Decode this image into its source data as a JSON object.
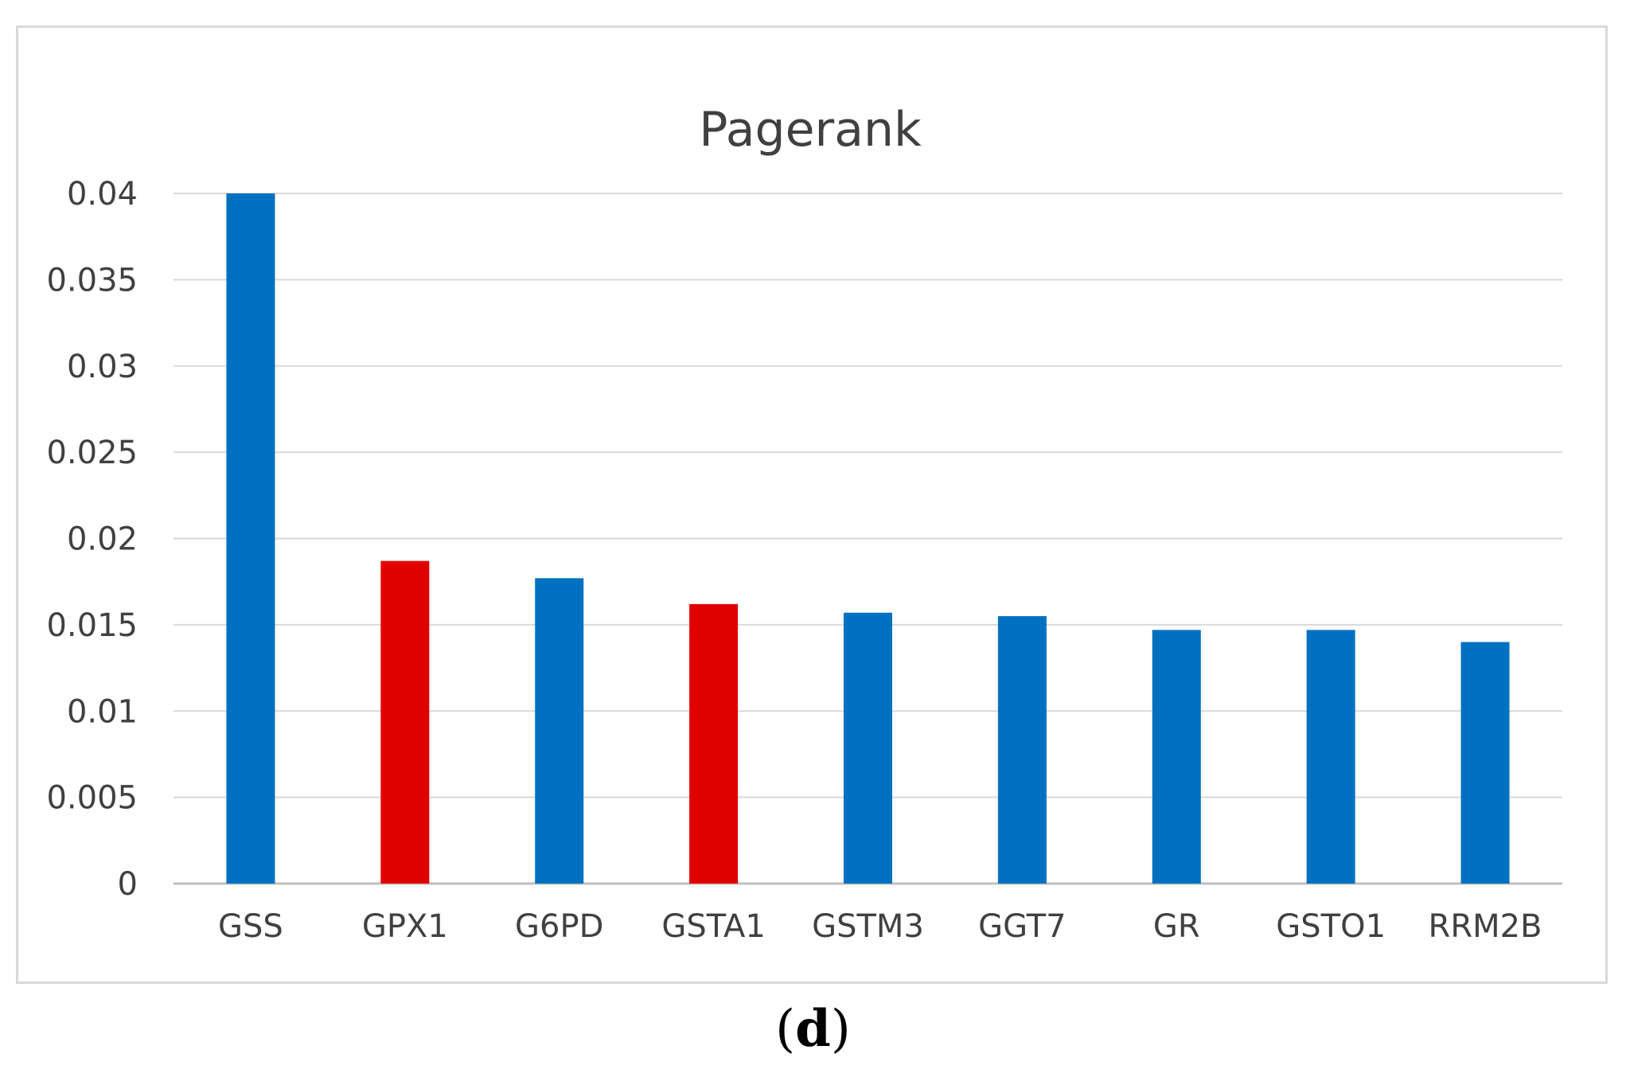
{
  "chart_data": {
    "type": "bar",
    "title": "Pagerank",
    "xlabel": "",
    "ylabel": "",
    "categories": [
      "GSS",
      "GPX1",
      "G6PD",
      "GSTA1",
      "GSTM3",
      "GGT7",
      "GR",
      "GSTO1",
      "RRM2B"
    ],
    "values": [
      0.04,
      0.0187,
      0.0177,
      0.0162,
      0.0157,
      0.0155,
      0.0147,
      0.0147,
      0.014
    ],
    "bar_colors": [
      "#0070c0",
      "#e00000",
      "#0070c0",
      "#e00000",
      "#0070c0",
      "#0070c0",
      "#0070c0",
      "#0070c0",
      "#0070c0"
    ],
    "ylim": [
      0,
      0.04
    ],
    "yticks": [
      0,
      0.005,
      0.01,
      0.015,
      0.02,
      0.025,
      0.03,
      0.035,
      0.04
    ],
    "ytick_labels": [
      "0",
      "0.005",
      "0.01",
      "0.015",
      "0.02",
      "0.025",
      "0.03",
      "0.035",
      "0.04"
    ],
    "grid": true,
    "legend": "none"
  },
  "panel_label": {
    "open": "(",
    "letter": "d",
    "close": ")"
  }
}
